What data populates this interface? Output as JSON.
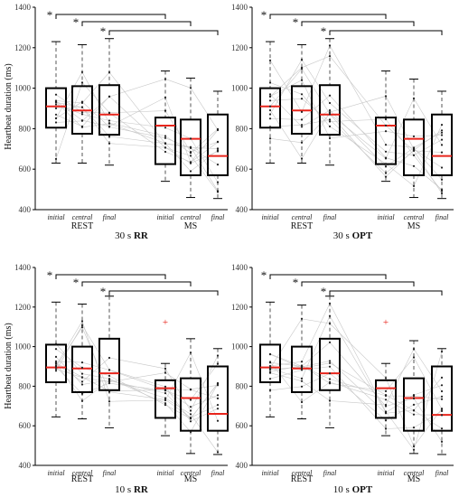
{
  "y_axis_label": "Heartbeat duration (ms)",
  "x_tick_labels": [
    "initial",
    "central",
    "final"
  ],
  "group_labels": [
    "REST",
    "MS"
  ],
  "significance_marker": "*",
  "colors": {
    "median": "#e8251c",
    "outlier": "#e8251c",
    "box": "#000000",
    "whisker": "#555555",
    "subject_line": "#c8c8c8",
    "point": "#222222"
  },
  "chart_data": [
    {
      "type": "box",
      "title": "30 s",
      "title_bold": "RR",
      "ylim": [
        400,
        1400
      ],
      "yticks": [
        400,
        600,
        800,
        1000,
        1200,
        1400
      ],
      "grid": false,
      "boxes": [
        {
          "group": "REST",
          "label": "initial",
          "min": 630,
          "q1": 805,
          "median": 910,
          "q3": 1000,
          "max": 1230
        },
        {
          "group": "REST",
          "label": "central",
          "min": 630,
          "q1": 775,
          "median": 890,
          "q3": 1010,
          "max": 1215
        },
        {
          "group": "REST",
          "label": "final",
          "min": 620,
          "q1": 770,
          "median": 870,
          "q3": 1015,
          "max": 1245
        },
        {
          "group": "MS",
          "label": "initial",
          "min": 540,
          "q1": 625,
          "median": 815,
          "q3": 855,
          "max": 1085
        },
        {
          "group": "MS",
          "label": "central",
          "min": 460,
          "q1": 570,
          "median": 750,
          "q3": 845,
          "max": 1050
        },
        {
          "group": "MS",
          "label": "final",
          "min": 455,
          "q1": 570,
          "median": 665,
          "q3": 870,
          "max": 985
        }
      ],
      "outliers": []
    },
    {
      "type": "box",
      "title": "30 s",
      "title_bold": "OPT",
      "ylim": [
        400,
        1400
      ],
      "yticks": [
        400,
        600,
        800,
        1000,
        1200,
        1400
      ],
      "grid": false,
      "boxes": [
        {
          "group": "REST",
          "label": "initial",
          "min": 630,
          "q1": 805,
          "median": 910,
          "q3": 1000,
          "max": 1230
        },
        {
          "group": "REST",
          "label": "central",
          "min": 630,
          "q1": 775,
          "median": 890,
          "q3": 1010,
          "max": 1215
        },
        {
          "group": "REST",
          "label": "final",
          "min": 620,
          "q1": 770,
          "median": 870,
          "q3": 1015,
          "max": 1245
        },
        {
          "group": "MS",
          "label": "initial",
          "min": 540,
          "q1": 625,
          "median": 815,
          "q3": 855,
          "max": 1085
        },
        {
          "group": "MS",
          "label": "central",
          "min": 460,
          "q1": 570,
          "median": 750,
          "q3": 845,
          "max": 1045
        },
        {
          "group": "MS",
          "label": "final",
          "min": 455,
          "q1": 570,
          "median": 665,
          "q3": 870,
          "max": 985
        }
      ],
      "outliers": []
    },
    {
      "type": "box",
      "title": "10 s",
      "title_bold": "RR",
      "ylim": [
        400,
        1400
      ],
      "yticks": [
        400,
        600,
        800,
        1000,
        1200,
        1400
      ],
      "grid": false,
      "boxes": [
        {
          "group": "REST",
          "label": "initial",
          "min": 645,
          "q1": 820,
          "median": 895,
          "q3": 1010,
          "max": 1225
        },
        {
          "group": "REST",
          "label": "central",
          "min": 635,
          "q1": 770,
          "median": 890,
          "q3": 1000,
          "max": 1215
        },
        {
          "group": "REST",
          "label": "final",
          "min": 590,
          "q1": 780,
          "median": 865,
          "q3": 1040,
          "max": 1255
        },
        {
          "group": "MS",
          "label": "initial",
          "min": 550,
          "q1": 640,
          "median": 790,
          "q3": 830,
          "max": 915
        },
        {
          "group": "MS",
          "label": "central",
          "min": 460,
          "q1": 575,
          "median": 740,
          "q3": 840,
          "max": 1040
        },
        {
          "group": "MS",
          "label": "final",
          "min": 455,
          "q1": 575,
          "median": 660,
          "q3": 900,
          "max": 990
        }
      ],
      "outliers": [
        {
          "box": 3,
          "value": 1125
        }
      ]
    },
    {
      "type": "box",
      "title": "10 s",
      "title_bold": "OPT",
      "ylim": [
        400,
        1400
      ],
      "yticks": [
        400,
        600,
        800,
        1000,
        1200,
        1400
      ],
      "grid": false,
      "boxes": [
        {
          "group": "REST",
          "label": "initial",
          "min": 645,
          "q1": 820,
          "median": 895,
          "q3": 1010,
          "max": 1225
        },
        {
          "group": "REST",
          "label": "central",
          "min": 635,
          "q1": 770,
          "median": 890,
          "q3": 1000,
          "max": 1210
        },
        {
          "group": "REST",
          "label": "final",
          "min": 590,
          "q1": 780,
          "median": 865,
          "q3": 1040,
          "max": 1255
        },
        {
          "group": "MS",
          "label": "initial",
          "min": 550,
          "q1": 640,
          "median": 790,
          "q3": 830,
          "max": 915
        },
        {
          "group": "MS",
          "label": "central",
          "min": 460,
          "q1": 575,
          "median": 740,
          "q3": 840,
          "max": 1030
        },
        {
          "group": "MS",
          "label": "final",
          "min": 455,
          "q1": 575,
          "median": 655,
          "q3": 900,
          "max": 990
        }
      ],
      "outliers": [
        {
          "box": 3,
          "value": 1125
        }
      ]
    }
  ]
}
